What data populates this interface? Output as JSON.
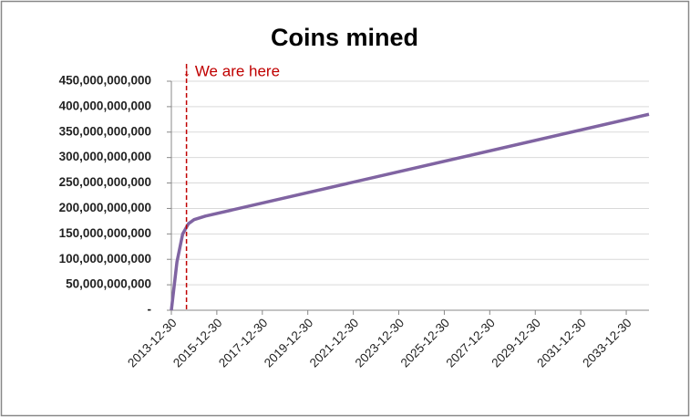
{
  "chart_data": {
    "type": "line",
    "title": "Coins mined",
    "x": [
      "2013-12-30",
      "2014-03-30",
      "2014-06-30",
      "2014-09-30",
      "2014-12-30",
      "2015-06-30",
      "2034-12-30"
    ],
    "series": [
      {
        "name": "Coins mined",
        "color": "#8064a2",
        "values": [
          0,
          95000000000,
          150000000000,
          170000000000,
          178000000000,
          185000000000,
          385000000000
        ]
      }
    ],
    "xlim": [
      "2013-12-30",
      "2034-12-30"
    ],
    "xticks": [
      "2013-12-30",
      "2015-12-30",
      "2017-12-30",
      "2019-12-30",
      "2021-12-30",
      "2023-12-30",
      "2025-12-30",
      "2027-12-30",
      "2029-12-30",
      "2031-12-30",
      "2033-12-30"
    ],
    "ylim": [
      0,
      450000000000
    ],
    "yticks": [
      {
        "value": 0,
        "label": "-"
      },
      {
        "value": 50000000000,
        "label": "50,000,000,000"
      },
      {
        "value": 100000000000,
        "label": "100,000,000,000"
      },
      {
        "value": 150000000000,
        "label": "150,000,000,000"
      },
      {
        "value": 200000000000,
        "label": "200,000,000,000"
      },
      {
        "value": 250000000000,
        "label": "250,000,000,000"
      },
      {
        "value": 300000000000,
        "label": "300,000,000,000"
      },
      {
        "value": 350000000000,
        "label": "350,000,000,000"
      },
      {
        "value": 400000000000,
        "label": "400,000,000,000"
      },
      {
        "value": 450000000000,
        "label": "450,000,000,000"
      }
    ],
    "grid": true,
    "annotation": {
      "text": "↓ We are here",
      "x": "2014-08-30",
      "color": "#c00000"
    }
  }
}
